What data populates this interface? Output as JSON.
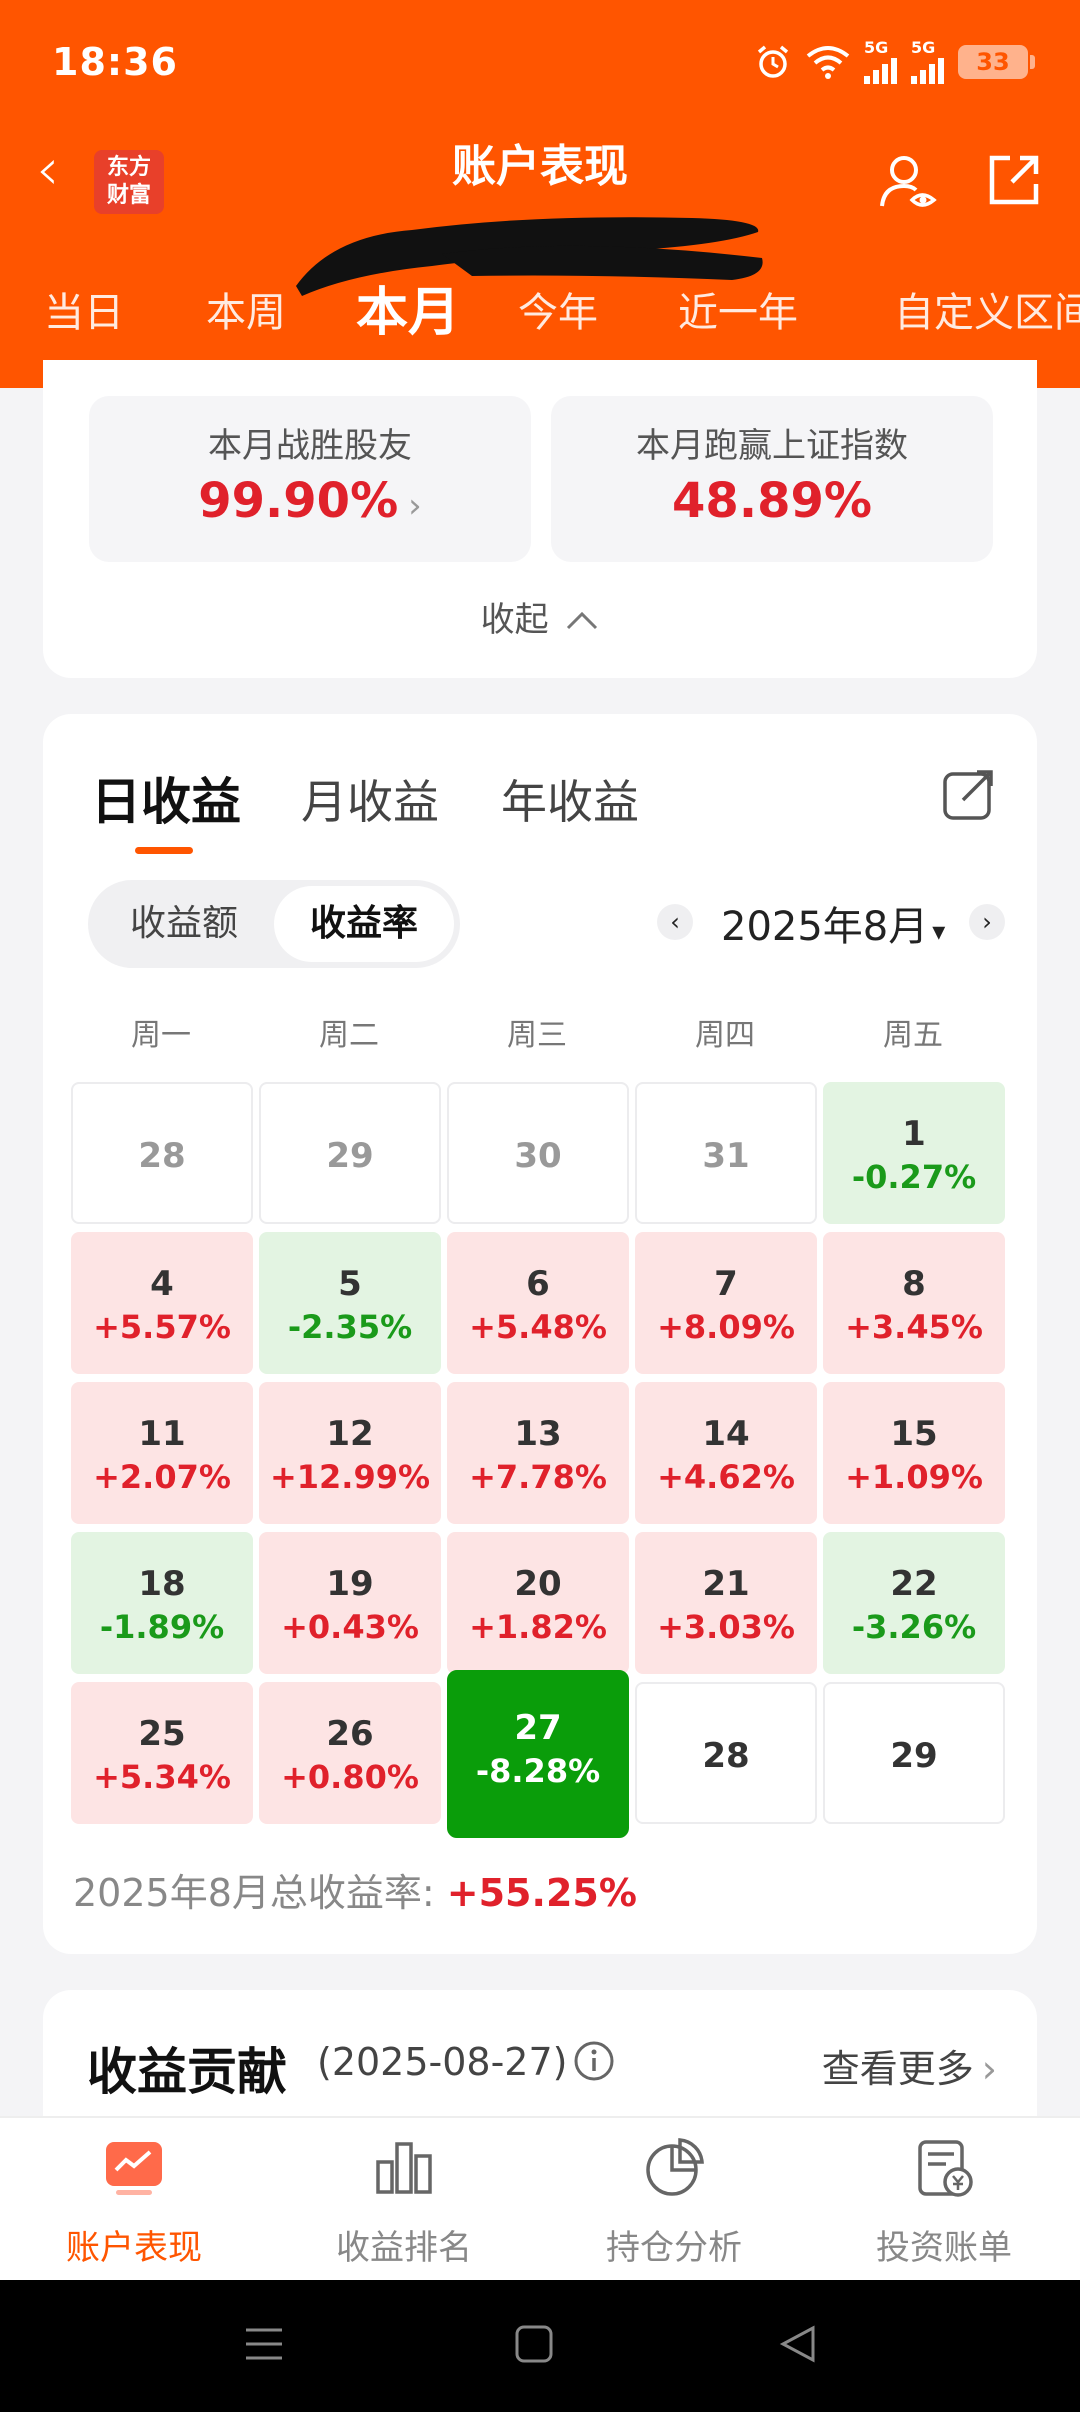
{
  "status_bar": {
    "time": "18:36",
    "net1": "5G",
    "net2": "5G",
    "battery": "33"
  },
  "header": {
    "title": "账户表现",
    "logo_line1": "东方",
    "logo_line2": "财富"
  },
  "period_tabs": [
    {
      "label": "当日",
      "active": false
    },
    {
      "label": "本周",
      "active": false
    },
    {
      "label": "本月",
      "active": true
    },
    {
      "label": "今年",
      "active": false
    },
    {
      "label": "近一年",
      "active": false
    },
    {
      "label": "自定义区间",
      "active": false
    }
  ],
  "summary": {
    "beat_friends_label": "本月战胜股友",
    "beat_friends_value": "99.90%",
    "beat_index_label": "本月跑赢上证指数",
    "beat_index_value": "48.89%",
    "collapse_label": "收起"
  },
  "earnings": {
    "tabs": [
      "日收益",
      "月收益",
      "年收益"
    ],
    "active_tab": "日收益",
    "toggle": [
      "收益额",
      "收益率"
    ],
    "toggle_active": "收益率",
    "month_label": "2025年8月",
    "weekdays": [
      "周一",
      "周二",
      "周三",
      "周四",
      "周五"
    ],
    "calendar": [
      [
        {
          "day": "28",
          "pct": "",
          "state": "empty"
        },
        {
          "day": "29",
          "pct": "",
          "state": "empty"
        },
        {
          "day": "30",
          "pct": "",
          "state": "empty"
        },
        {
          "day": "31",
          "pct": "",
          "state": "empty"
        },
        {
          "day": "1",
          "pct": "-0.27%",
          "state": "down"
        }
      ],
      [
        {
          "day": "4",
          "pct": "+5.57%",
          "state": "up"
        },
        {
          "day": "5",
          "pct": "-2.35%",
          "state": "down"
        },
        {
          "day": "6",
          "pct": "+5.48%",
          "state": "up"
        },
        {
          "day": "7",
          "pct": "+8.09%",
          "state": "up"
        },
        {
          "day": "8",
          "pct": "+3.45%",
          "state": "up"
        }
      ],
      [
        {
          "day": "11",
          "pct": "+2.07%",
          "state": "up"
        },
        {
          "day": "12",
          "pct": "+12.99%",
          "state": "up"
        },
        {
          "day": "13",
          "pct": "+7.78%",
          "state": "up"
        },
        {
          "day": "14",
          "pct": "+4.62%",
          "state": "up"
        },
        {
          "day": "15",
          "pct": "+1.09%",
          "state": "up"
        }
      ],
      [
        {
          "day": "18",
          "pct": "-1.89%",
          "state": "down"
        },
        {
          "day": "19",
          "pct": "+0.43%",
          "state": "up"
        },
        {
          "day": "20",
          "pct": "+1.82%",
          "state": "up"
        },
        {
          "day": "21",
          "pct": "+3.03%",
          "state": "up"
        },
        {
          "day": "22",
          "pct": "-3.26%",
          "state": "down"
        }
      ],
      [
        {
          "day": "25",
          "pct": "+5.34%",
          "state": "up"
        },
        {
          "day": "26",
          "pct": "+0.80%",
          "state": "up"
        },
        {
          "day": "27",
          "pct": "-8.28%",
          "state": "sel"
        },
        {
          "day": "28",
          "pct": "",
          "state": "future"
        },
        {
          "day": "29",
          "pct": "",
          "state": "future"
        }
      ]
    ],
    "total_label": "2025年8月总收益率: ",
    "total_value": "+55.25%",
    "colors": {
      "up": "#e0212b",
      "down": "#1a9a1a",
      "selected": "#0a9d0a"
    }
  },
  "contribution": {
    "title": "收益贡献",
    "date": "(2025-08-27)",
    "more": "查看更多"
  },
  "bottom_nav": [
    {
      "label": "账户表现",
      "icon": "chart-card-icon",
      "active": true
    },
    {
      "label": "收益排名",
      "icon": "bar-chart-icon",
      "active": false
    },
    {
      "label": "持仓分析",
      "icon": "pie-chart-icon",
      "active": false
    },
    {
      "label": "投资账单",
      "icon": "bill-icon",
      "active": false
    }
  ]
}
